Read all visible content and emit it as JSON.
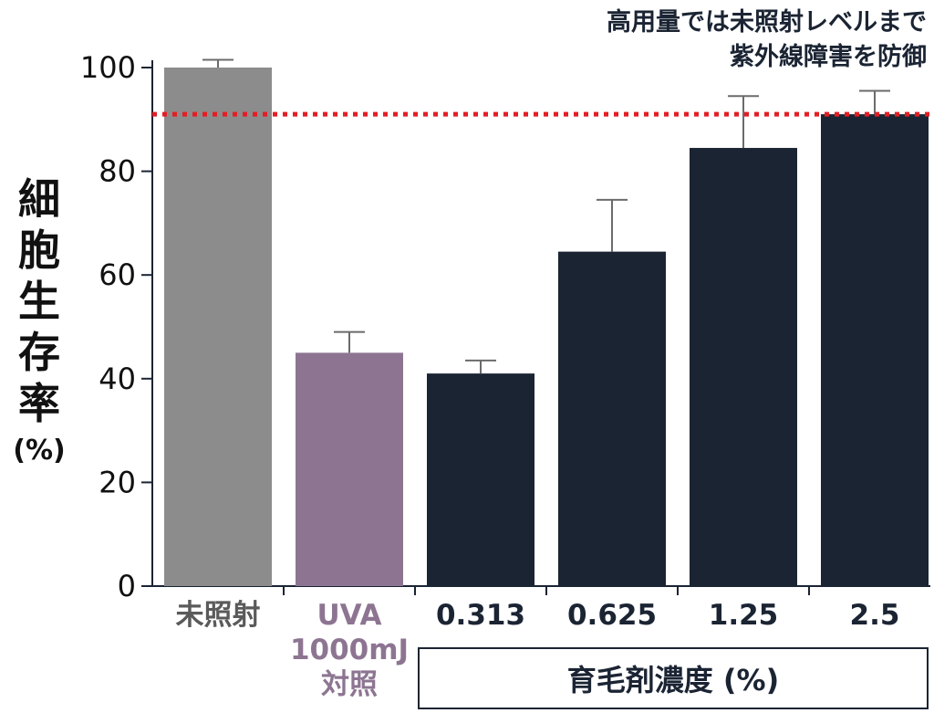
{
  "chart_data": {
    "type": "bar",
    "ylabel_chars": [
      "細",
      "胞",
      "生",
      "存",
      "率"
    ],
    "ylabel_unit": "(%)",
    "ylim": [
      0,
      100
    ],
    "yticks": [
      0,
      20,
      40,
      60,
      80,
      100
    ],
    "categories": [
      [
        "未照射"
      ],
      [
        "UVA",
        "1000mJ",
        "対照"
      ],
      [
        "0.313"
      ],
      [
        "0.625"
      ],
      [
        "1.25"
      ],
      [
        "2.5"
      ]
    ],
    "values": [
      100,
      45,
      41,
      64.5,
      84.5,
      91
    ],
    "error": [
      1.5,
      4,
      2.5,
      10,
      10,
      4.5
    ],
    "bar_colors": [
      "#8c8c8c",
      "#8d7592",
      "#1b2433",
      "#1b2433",
      "#1b2433",
      "#1b2433"
    ],
    "label_colors": [
      "#5a5a5a",
      "#8d7592",
      "#1b2433",
      "#1b2433",
      "#1b2433",
      "#1b2433"
    ],
    "reference_line": {
      "value": 91,
      "color": "#e31e24",
      "style": "dotted"
    },
    "annotation_lines": [
      "高用量では未照射レベルまで",
      "紫外線障害を防御"
    ],
    "xgroup_label": "育毛剤濃度 (%)",
    "grid": false
  }
}
